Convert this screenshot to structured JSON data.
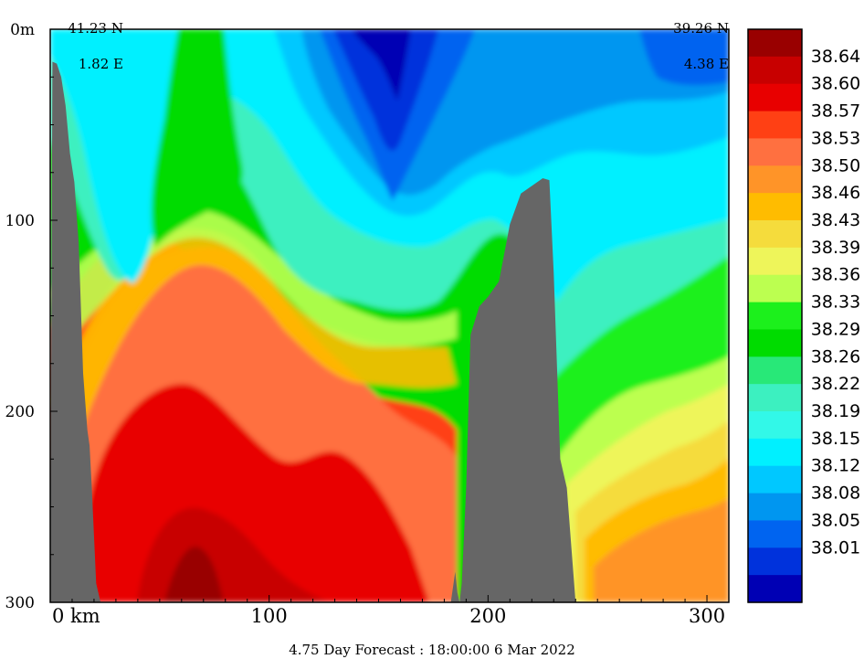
{
  "chart_data": {
    "type": "heatmap",
    "description_of_axes": {
      "x_unit_label": "km",
      "y_surface_label": "0m"
    },
    "x_ticks": [
      {
        "value": 0,
        "label": "0  km"
      },
      {
        "value": 100,
        "label": "100"
      },
      {
        "value": 200,
        "label": "200"
      },
      {
        "value": 300,
        "label": "300"
      }
    ],
    "y_ticks": [
      {
        "value": 0,
        "label": "0m"
      },
      {
        "value": 100,
        "label": "100"
      },
      {
        "value": 200,
        "label": "200"
      },
      {
        "value": 300,
        "label": "300"
      }
    ],
    "xlim": [
      0,
      310
    ],
    "ylim": [
      0,
      300
    ],
    "y_reversed": true,
    "start_location": {
      "lat": "41.23 N",
      "lon": "1.82 E"
    },
    "end_location": {
      "lat": "39.26 N",
      "lon": "4.38 E"
    },
    "caption": "4.75 Day Forecast : 18:00:00    6 Mar 2022",
    "colorbar": {
      "labels": [
        "38.64",
        "38.60",
        "38.57",
        "38.53",
        "38.50",
        "38.46",
        "38.43",
        "38.39",
        "38.36",
        "38.33",
        "38.29",
        "38.26",
        "38.22",
        "38.19",
        "38.15",
        "38.12",
        "38.08",
        "38.05",
        "38.01"
      ],
      "colors": [
        "#990000",
        "#c80000",
        "#e80000",
        "#ff4014",
        "#ff7040",
        "#ff9428",
        "#ffbc00",
        "#f5dc3c",
        "#eef55a",
        "#bcff50",
        "#1cf01c",
        "#00dc00",
        "#28e878",
        "#3cf0c0",
        "#32f8e8",
        "#00f0ff",
        "#00c8ff",
        "#0096f0",
        "#0064f0",
        "#0032dc",
        "#0000b4"
      ]
    },
    "bathymetry_color": "#666666",
    "bathymetry_profile": {
      "x": [
        0,
        1,
        3,
        5,
        7,
        9,
        11,
        13,
        15,
        17,
        18,
        19,
        21,
        23,
        25,
        183,
        185,
        186,
        187,
        188,
        190,
        192,
        196,
        200,
        205,
        210,
        215,
        220,
        225,
        228,
        230,
        233,
        236,
        240,
        310
      ],
      "depth": [
        300,
        17,
        18,
        25,
        40,
        65,
        80,
        112,
        180,
        210,
        218,
        240,
        290,
        300,
        300,
        300,
        284,
        295,
        300,
        290,
        240,
        160,
        145,
        140,
        132,
        102,
        86,
        82,
        78,
        79,
        128,
        225,
        240,
        300,
        300
      ]
    }
  }
}
